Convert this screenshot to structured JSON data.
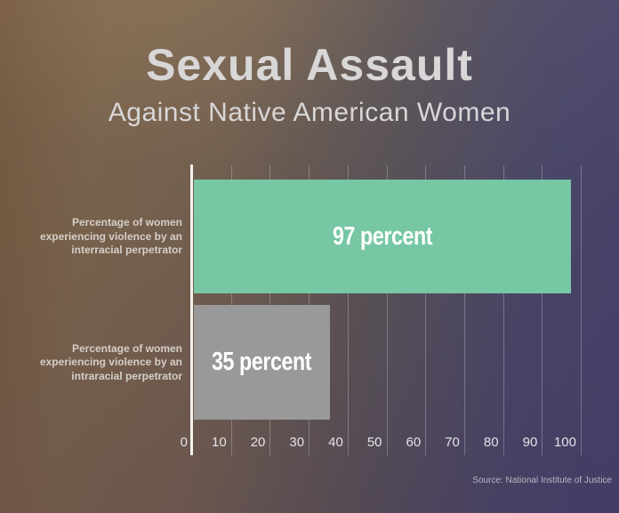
{
  "header": {
    "title": "Sexual Assault",
    "subtitle": "Against Native American Women"
  },
  "source": {
    "text": "Source: National Institute of Justice"
  },
  "colors": {
    "bar_interracial": "#77c7a4",
    "bar_intraracial": "#9a9999",
    "axis_line": "#f5f3ef",
    "gridline": "rgba(255,255,255,0.25)",
    "title_text": "#d8d6d7",
    "category_label_text": "#d5cfc9",
    "tick_label_text": "#e4e2e7",
    "value_label_text": "#ffffff",
    "source_text": "#b9b7c5",
    "background_left": "#71563f",
    "background_right": "#454168"
  },
  "chart_data": {
    "type": "bar",
    "orientation": "horizontal",
    "title": "Sexual Assault",
    "subtitle": "Against Native American Women",
    "categories": [
      "Percentage of women experiencing violence by an interracial perpetrator",
      "Percentage of women experiencing violence by an intraracial perpetrator"
    ],
    "category_lines": [
      [
        "Percentage of women",
        "experiencing violence by an",
        "interracial perpetrator"
      ],
      [
        "Percentage of women",
        "experiencing violence by an",
        "intraracial perpetrator"
      ]
    ],
    "values": [
      97,
      35
    ],
    "value_labels": [
      "97 percent",
      "35 percent"
    ],
    "bar_colors": [
      "#77c7a4",
      "#9a9999"
    ],
    "xlim": [
      0,
      100
    ],
    "xticks": [
      0,
      10,
      20,
      30,
      40,
      50,
      60,
      70,
      80,
      90,
      100
    ],
    "grid": true,
    "legend": false,
    "source": "Source: National Institute of Justice"
  }
}
